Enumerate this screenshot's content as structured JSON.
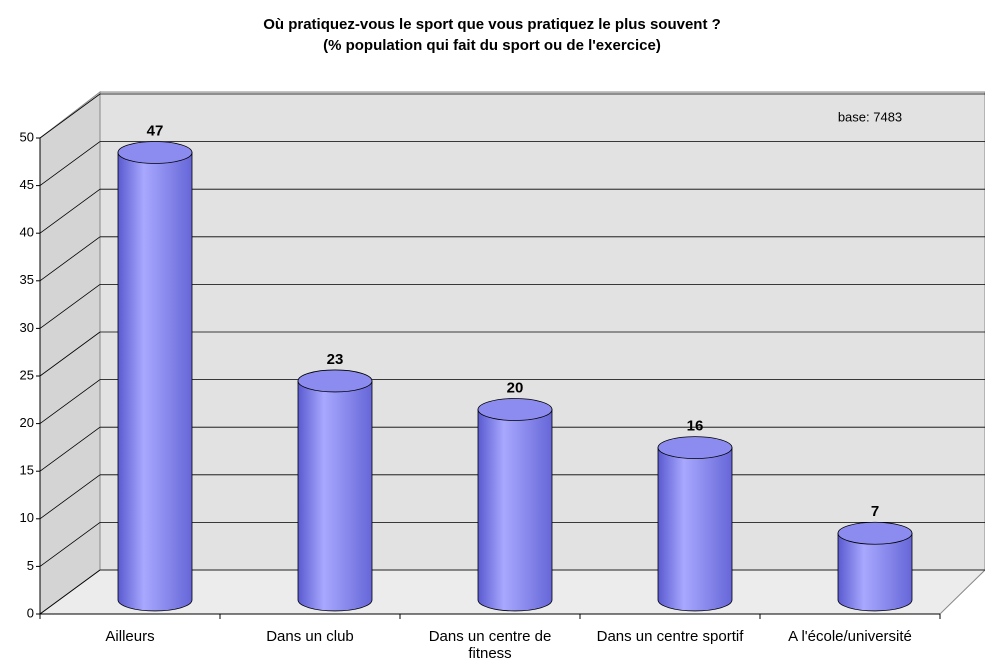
{
  "chart_data": {
    "type": "bar",
    "title": "Où pratiquez-vous le sport que vous pratiquez le plus souvent ?",
    "subtitle": "(% population qui fait du sport ou de l'exercice)",
    "annotation": "base: 7483",
    "categories": [
      "Ailleurs",
      "Dans un club",
      "Dans un centre de fitness",
      "Dans un centre sportif",
      "A l'école/université"
    ],
    "values": [
      47,
      23,
      20,
      16,
      7
    ],
    "color": "#8c8cf0",
    "ylim": [
      0,
      50
    ],
    "yticks": [
      0,
      5,
      10,
      15,
      20,
      25,
      30,
      35,
      40,
      45,
      50
    ],
    "grid": true
  }
}
